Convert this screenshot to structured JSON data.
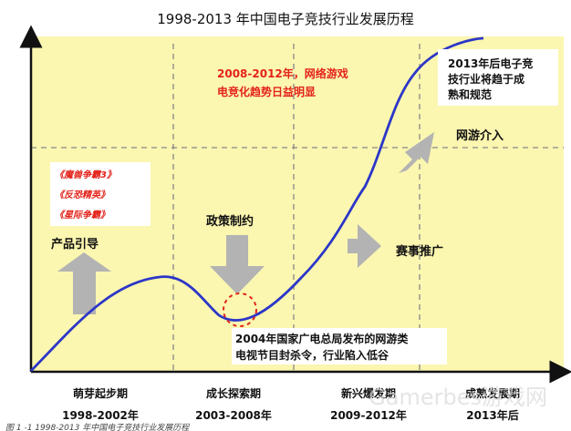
{
  "title": "1998-2013 年中国电子竞技行业发展历程",
  "caption": "图 1 -1 1998-2013 年中国电子竞技行业发展历程",
  "watermark": "Gamerbes游戏网",
  "callouts": {
    "network_rise_line1": "2008-2012年，网络游戏",
    "network_rise_line2": "电竞化趋势日益明显",
    "post_2013_line1": "2013年后电子竞",
    "post_2013_line2": "技行业将趋于成",
    "post_2013_line3": "熟和规范",
    "ban_line1": "2004年国家广电总局发布的网游类",
    "ban_line2": "电视节目封杀令，行业陷入低谷"
  },
  "games": [
    "《魔兽争霸3》",
    "《反恐精英》",
    "《星际争霸》"
  ],
  "drivers": {
    "product": "产品引导",
    "policy": "政策制约",
    "events": "赛事推广",
    "online": "网游介入"
  },
  "phases": [
    {
      "name": "萌芽起步期",
      "years": "1998-2002年"
    },
    {
      "name": "成长探索期",
      "years": "2003-2008年"
    },
    {
      "name": "新兴爆发期",
      "years": "2009-2012年"
    },
    {
      "name": "成熟发展期",
      "years": "2013年后"
    }
  ],
  "colors": {
    "panel": "#fbf6b0",
    "curve": "#2b36c8",
    "arrow": "#b3b3b3",
    "red_text": "#e3231b",
    "dark_text": "#111111",
    "circle": "#e3231b"
  }
}
